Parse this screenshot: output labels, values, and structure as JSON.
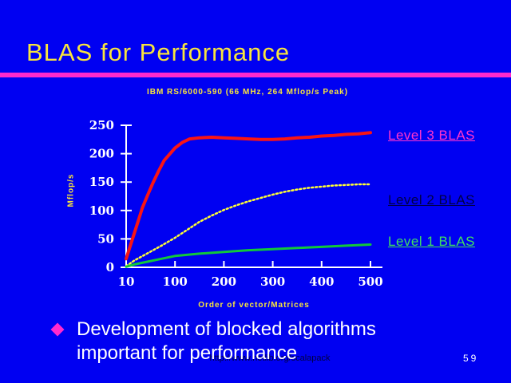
{
  "slide": {
    "title": "BLAS for Performance",
    "page_number": "59",
    "footer_url": "http://www.netlib.org/scalapack",
    "bullet": {
      "line1": "Development of blocked algorithms",
      "line2": "important for performance"
    }
  },
  "colors": {
    "background": "#0000F2",
    "title": "#F8E53C",
    "rule": "#FF2ACD",
    "axis": "#FFFFFF",
    "tick_label": "#FFFFFF",
    "axis_title": "#F8E53C",
    "bullet_diamond": "#FF2ACD",
    "body_text": "#FFFFFF",
    "footer": "#000044",
    "page_number": "#FFFFFF"
  },
  "chart_data": {
    "type": "line",
    "title": "IBM RS/6000-590 (66 MHz, 264 Mflop/s Peak)",
    "xlabel": "Order of vector/Matrices",
    "ylabel": "Mflop/s",
    "x_ticks": [
      10,
      100,
      200,
      300,
      400,
      500
    ],
    "y_ticks": [
      0,
      50,
      100,
      150,
      200,
      250
    ],
    "xlim": [
      10,
      500
    ],
    "ylim": [
      0,
      250
    ],
    "grid": false,
    "legend_position": "right",
    "series": [
      {
        "name": "Level 3 BLAS",
        "line_color": "#FA1414",
        "label_color": "#FF33CC",
        "dash": "solid",
        "width": 4,
        "points": [
          [
            10,
            15
          ],
          [
            20,
            45
          ],
          [
            30,
            75
          ],
          [
            40,
            105
          ],
          [
            50,
            128
          ],
          [
            60,
            150
          ],
          [
            70,
            170
          ],
          [
            80,
            188
          ],
          [
            100,
            210
          ],
          [
            115,
            220
          ],
          [
            130,
            226
          ],
          [
            150,
            228
          ],
          [
            175,
            229
          ],
          [
            200,
            228
          ],
          [
            225,
            227
          ],
          [
            250,
            226
          ],
          [
            275,
            225
          ],
          [
            300,
            225
          ],
          [
            325,
            226
          ],
          [
            350,
            228
          ],
          [
            375,
            229
          ],
          [
            400,
            231
          ],
          [
            425,
            232
          ],
          [
            450,
            234
          ],
          [
            475,
            235
          ],
          [
            500,
            237
          ]
        ]
      },
      {
        "name": "Level 2 BLAS",
        "line_color": "#FFFF33",
        "label_color": "#000044",
        "dash": "dotted",
        "width": 2.5,
        "points": [
          [
            10,
            2
          ],
          [
            25,
            12
          ],
          [
            50,
            25
          ],
          [
            75,
            38
          ],
          [
            100,
            52
          ],
          [
            125,
            66
          ],
          [
            150,
            80
          ],
          [
            175,
            91
          ],
          [
            200,
            101
          ],
          [
            225,
            109
          ],
          [
            250,
            116
          ],
          [
            275,
            122
          ],
          [
            300,
            128
          ],
          [
            325,
            133
          ],
          [
            350,
            137
          ],
          [
            375,
            140
          ],
          [
            400,
            142
          ],
          [
            425,
            144
          ],
          [
            450,
            145
          ],
          [
            475,
            146
          ],
          [
            500,
            146
          ]
        ]
      },
      {
        "name": "Level 1 BLAS",
        "line_color": "#11C83A",
        "label_color": "#3FE05F",
        "dash": "solid",
        "width": 3,
        "points": [
          [
            10,
            1
          ],
          [
            25,
            5
          ],
          [
            50,
            10
          ],
          [
            75,
            15
          ],
          [
            100,
            20
          ],
          [
            150,
            24
          ],
          [
            200,
            27
          ],
          [
            250,
            30
          ],
          [
            300,
            32
          ],
          [
            350,
            34
          ],
          [
            400,
            36
          ],
          [
            450,
            38
          ],
          [
            500,
            40
          ]
        ]
      }
    ]
  }
}
